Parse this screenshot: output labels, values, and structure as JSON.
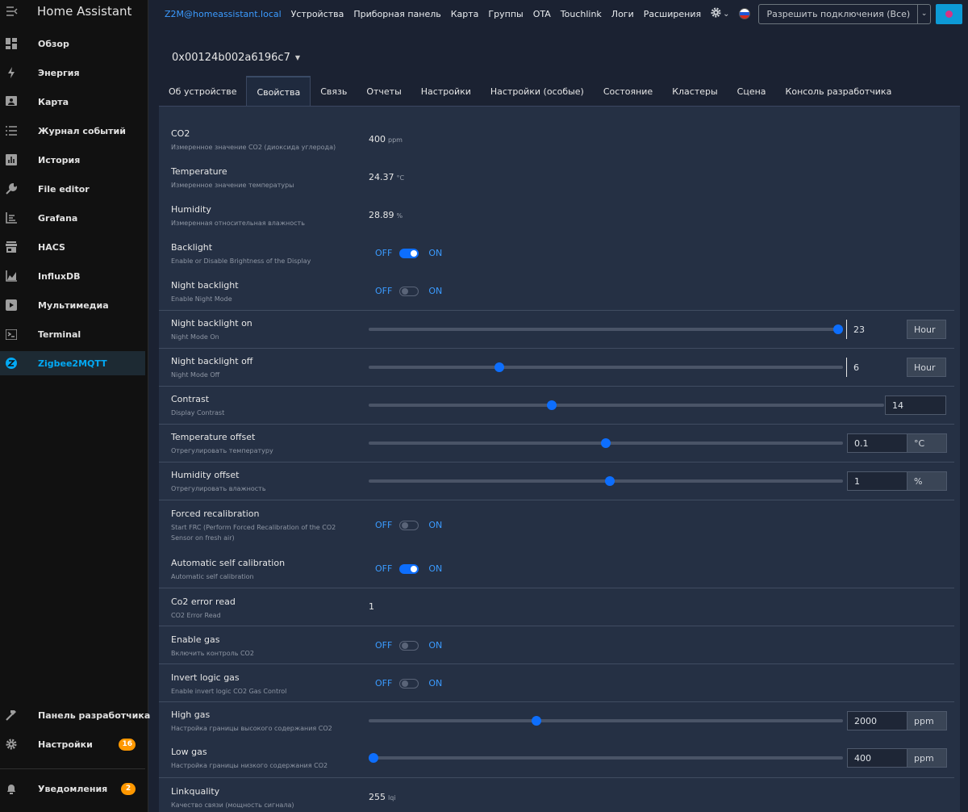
{
  "sidebar": {
    "title": "Home Assistant",
    "items": [
      {
        "label": "Обзор",
        "icon": "dashboard-grid-icon"
      },
      {
        "label": "Энергия",
        "icon": "lightning-bolt-icon"
      },
      {
        "label": "Карта",
        "icon": "map-person-icon"
      },
      {
        "label": "Журнал событий",
        "icon": "list-icon"
      },
      {
        "label": "История",
        "icon": "chart-box-icon"
      },
      {
        "label": "File editor",
        "icon": "wrench-icon"
      },
      {
        "label": "Grafana",
        "icon": "chart-timeline-icon"
      },
      {
        "label": "HACS",
        "icon": "store-icon"
      },
      {
        "label": "InfluxDB",
        "icon": "chart-areaspline-icon"
      },
      {
        "label": "Мультимедиа",
        "icon": "play-box-icon"
      },
      {
        "label": "Terminal",
        "icon": "console-icon"
      },
      {
        "label": "Zigbee2MQTT",
        "icon": "zigbee-icon",
        "active": true
      }
    ],
    "bottom": [
      {
        "label": "Панель разработчика",
        "icon": "hammer-icon"
      },
      {
        "label": "Настройки",
        "icon": "cog-icon",
        "badge": "16"
      },
      {
        "label": "Уведомления",
        "icon": "bell-icon",
        "badge": "2"
      }
    ]
  },
  "topnav": {
    "brand": "Z2M@homeassistant.local",
    "links": [
      "Устройства",
      "Приборная панель",
      "Карта",
      "Группы",
      "OTA",
      "Touchlink",
      "Логи",
      "Расширения"
    ],
    "permit_join": "Разрешить подключения (Все)"
  },
  "device": {
    "title": "0x00124b002a6196c7"
  },
  "tabs": [
    "Об устройстве",
    "Свойства",
    "Связь",
    "Отчеты",
    "Настройки",
    "Настройки (особые)",
    "Состояние",
    "Кластеры",
    "Сцена",
    "Консоль разработчика"
  ],
  "active_tab": 1,
  "properties": [
    {
      "name": "CO2",
      "desc": "Измеренное значение CO2 (диоксида углерода)",
      "value": "400",
      "unit": "ppm"
    },
    {
      "name": "Temperature",
      "desc": "Измеренное значение температуры",
      "value": "24.37",
      "unit": "°C"
    },
    {
      "name": "Humidity",
      "desc": "Измеренная относительная влажность",
      "value": "28.89",
      "unit": "%"
    },
    {
      "name": "Backlight",
      "desc": "Enable or Disable Brightness of the Display",
      "off": "OFF",
      "on": "ON",
      "checked": true
    },
    {
      "name": "Night backlight",
      "desc": "Enable Night Mode",
      "off": "OFF",
      "on": "ON",
      "checked": false
    },
    {
      "name": "Night backlight on",
      "desc": "Night Mode On",
      "value": "23",
      "unit": "Hour",
      "level": 1.0
    },
    {
      "name": "Night backlight off",
      "desc": "Night Mode Off",
      "value": "6",
      "unit": "Hour",
      "level": 0.27
    },
    {
      "name": "Contrast",
      "desc": "Display Contrast",
      "value": "14",
      "level": 0.353
    },
    {
      "name": "Temperature offset",
      "desc": "Отрегулировать температуру",
      "value": "0.1",
      "unit": "°C",
      "level": 0.5
    },
    {
      "name": "Humidity offset",
      "desc": "Отрегулировать влажность",
      "value": "1",
      "unit": "%",
      "level": 0.508
    },
    {
      "name": "Forced recalibration",
      "desc": "Start FRC (Perform Forced Recalibration of the CO2",
      "desc2": "Sensor on fresh air)",
      "off": "OFF",
      "on": "ON",
      "checked": false
    },
    {
      "name": "Automatic self calibration",
      "desc": "Automatic self calibration",
      "off": "OFF",
      "on": "ON",
      "checked": true
    },
    {
      "name": "Co2 error read",
      "desc": "CO2 Error Read",
      "value": "1"
    },
    {
      "name": "Enable gas",
      "desc": "Включить контроль CO2",
      "off": "OFF",
      "on": "ON",
      "checked": false
    },
    {
      "name": "Invert logic gas",
      "desc": "Enable invert logic CO2 Gas Control",
      "off": "OFF",
      "on": "ON",
      "checked": false
    },
    {
      "name": "High gas",
      "desc": "Настройка границы высокого содержания CO2",
      "value": "2000",
      "unit": "ppm",
      "level": 0.35
    },
    {
      "name": "Low gas",
      "desc": "Настройка границы низкого содержания CO2",
      "value": "400",
      "unit": "ppm",
      "level": 0.0
    },
    {
      "name": "Linkquality",
      "desc": "Качество связи (мощность сигнала)",
      "value": "255",
      "unit": "lqi"
    }
  ]
}
